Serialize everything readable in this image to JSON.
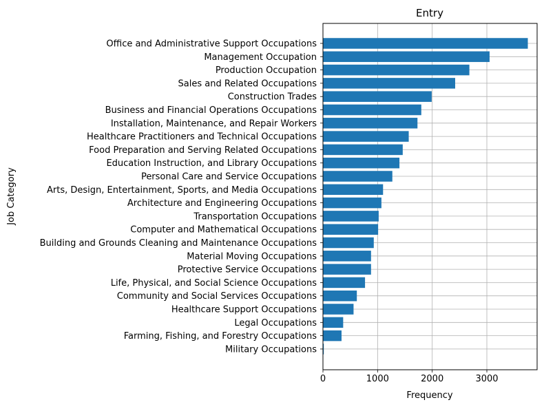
{
  "chart_data": {
    "type": "bar",
    "orientation": "horizontal",
    "title": "Entry",
    "xlabel": "Frequency",
    "ylabel": "Job Category",
    "xlim": [
      0,
      3920
    ],
    "xticks": [
      0,
      1000,
      2000,
      3000
    ],
    "grid": true,
    "bar_color": "#1f77b4",
    "categories": [
      "Office and Administrative Support Occupations",
      "Management Occupation",
      "Production Occupation",
      "Sales and Related Occupations",
      "Construction Trades",
      "Business and Financial Operations Occupations ",
      "Installation, Maintenance, and Repair Workers",
      "Healthcare Practitioners and Technical Occupations",
      "Food Preparation and Serving Related Occupations",
      "Education Instruction, and Library Occupations",
      "Personal Care and Service Occupations",
      "Arts, Design, Entertainment, Sports, and Media Occupations",
      "Architecture and Engineering Occupations",
      "Transportation Occupations",
      "Computer and Mathematical Occupations",
      "Building and Grounds Cleaning and Maintenance Occupations",
      "Material Moving Occupations",
      "Protective Service Occupations",
      "Life, Physical, and Social Science Occupations",
      "Community and Social Services Occupations",
      "Healthcare Support Occupations",
      "Legal Occupations",
      "Farming, Fishing, and Forestry Occupations",
      "Military Occupations"
    ],
    "values": [
      3750,
      3050,
      2680,
      2420,
      1990,
      1800,
      1730,
      1570,
      1460,
      1400,
      1270,
      1100,
      1070,
      1020,
      1010,
      930,
      880,
      880,
      770,
      620,
      560,
      370,
      340,
      15
    ]
  }
}
